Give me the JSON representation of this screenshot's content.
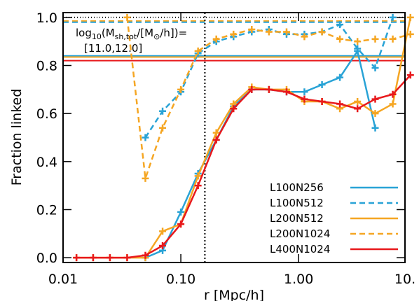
{
  "chart_data": {
    "type": "line",
    "xlabel": "r [Mpc/h]",
    "ylabel": "Fraction linked",
    "xscale": "log",
    "xlim": [
      0.01,
      8
    ],
    "ylim": [
      -0.02,
      1.02
    ],
    "xticks": [
      {
        "value": 0.01,
        "label": "0.01"
      },
      {
        "value": 0.1,
        "label": "0.10"
      },
      {
        "value": 1,
        "label": "1.00"
      },
      {
        "value": 10,
        "label": "10."
      }
    ],
    "yticks": [
      {
        "value": 0,
        "label": "0.0"
      },
      {
        "value": 0.2,
        "label": "0.2"
      },
      {
        "value": 0.4,
        "label": "0.4"
      },
      {
        "value": 0.6,
        "label": "0.6"
      },
      {
        "value": 0.8,
        "label": "0.8"
      },
      {
        "value": 1,
        "label": "1.0"
      }
    ],
    "annotation": {
      "line1": [
        {
          "text": "log"
        },
        {
          "text": "10",
          "sub": true
        },
        {
          "text": "(M"
        },
        {
          "text": "sh,tot",
          "sub": true
        },
        {
          "text": "/[M"
        },
        {
          "text": "⊙",
          "sub": true
        },
        {
          "text": "/h])="
        }
      ],
      "line2": "[11.0,12.0]"
    },
    "hlines": [
      {
        "value": 1.0,
        "color": "#000000",
        "dash": "1,3"
      },
      {
        "value": 0.985,
        "color": "#f5a623",
        "dash": "8,5"
      },
      {
        "value": 0.98,
        "color": "#29a3d6",
        "dash": "8,5"
      },
      {
        "value": 0.84,
        "color": "#29a3d6",
        "dash": ""
      },
      {
        "value": 0.835,
        "color": "#f5a623",
        "dash": ""
      },
      {
        "value": 0.82,
        "color": "#e8191c",
        "dash": ""
      }
    ],
    "vlines": [
      {
        "value": 0.16,
        "color": "#000000",
        "dash": "2,3"
      }
    ],
    "legend": "lower right",
    "x": [
      0.013,
      0.018,
      0.025,
      0.035,
      0.05,
      0.07,
      0.1,
      0.14,
      0.2,
      0.28,
      0.4,
      0.56,
      0.79,
      1.12,
      1.58,
      2.24,
      3.16,
      4.47,
      6.3,
      8.9
    ],
    "series": [
      {
        "name": "L100N256",
        "color": "#29a3d6",
        "dash": "",
        "values": [
          null,
          null,
          null,
          null,
          0.0,
          0.03,
          0.19,
          0.35,
          0.49,
          0.63,
          0.7,
          0.7,
          0.69,
          0.69,
          0.72,
          0.75,
          0.86,
          0.54,
          null,
          null
        ]
      },
      {
        "name": "L100N512",
        "color": "#29a3d6",
        "dash": "8,5",
        "values": [
          null,
          null,
          null,
          null,
          0.5,
          0.61,
          0.69,
          0.85,
          0.9,
          0.92,
          0.94,
          0.95,
          0.93,
          0.93,
          0.94,
          0.97,
          0.87,
          0.79,
          1.0,
          null
        ]
      },
      {
        "name": "L200N512",
        "color": "#f5a623",
        "dash": "",
        "values": [
          0,
          0,
          0,
          0,
          0,
          0.11,
          0.14,
          0.34,
          0.52,
          0.64,
          0.71,
          0.7,
          0.7,
          0.65,
          0.65,
          0.62,
          0.65,
          0.6,
          0.64,
          1.0
        ]
      },
      {
        "name": "L200N1024",
        "color": "#f5a623",
        "dash": "8,5",
        "values": [
          null,
          null,
          null,
          1.0,
          0.33,
          0.54,
          0.7,
          0.86,
          0.91,
          0.93,
          0.95,
          0.94,
          0.94,
          0.92,
          0.94,
          0.91,
          0.9,
          0.91,
          0.91,
          0.93
        ]
      },
      {
        "name": "L400N1024",
        "color": "#e8191c",
        "dash": "",
        "values": [
          0,
          0,
          0,
          0,
          0.01,
          0.05,
          0.14,
          0.3,
          0.49,
          0.62,
          0.7,
          0.7,
          0.69,
          0.66,
          0.65,
          0.64,
          0.62,
          0.66,
          0.68,
          0.76
        ]
      }
    ]
  }
}
